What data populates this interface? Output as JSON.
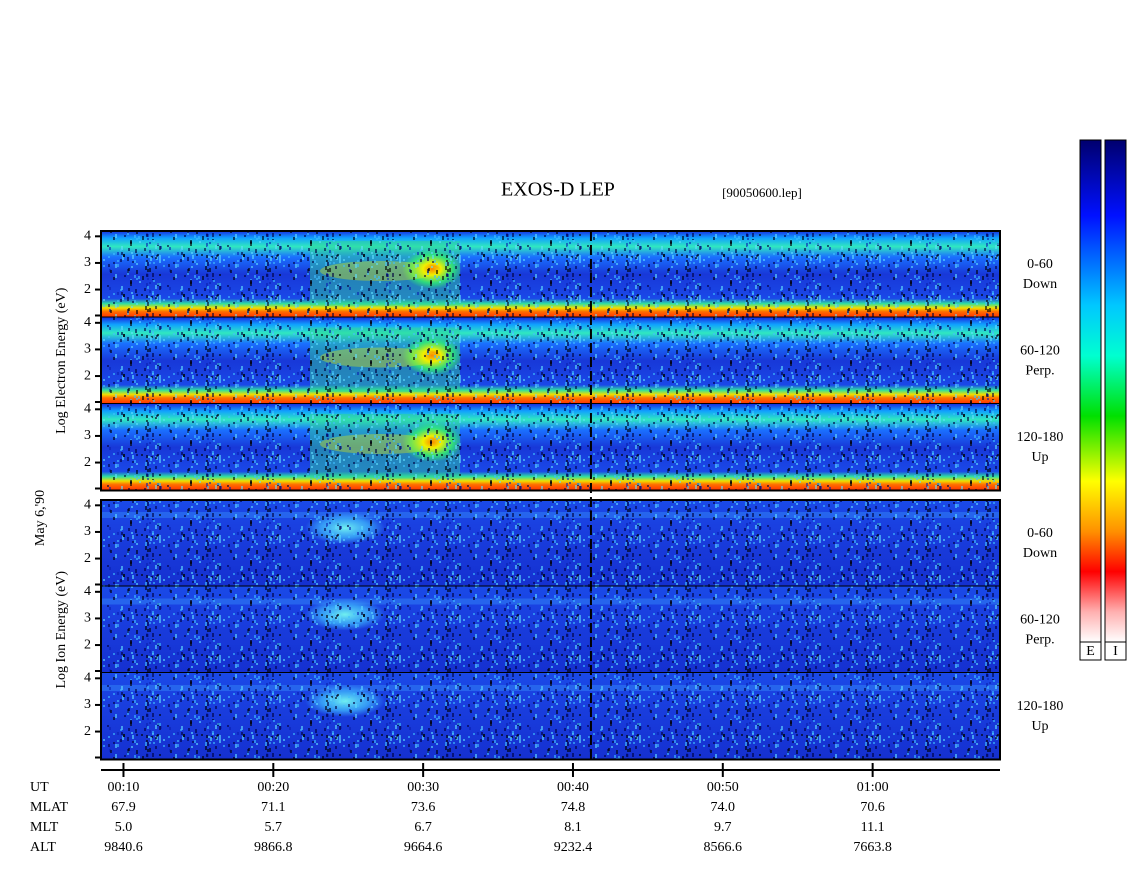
{
  "chart_data": {
    "type": "spectrogram",
    "title": "EXOS-D LEP",
    "subtitle": "[90050600.lep]",
    "date_label": "May 6,'90",
    "xlabel": "UT",
    "xlim": [
      8.5,
      68.5
    ],
    "xticks": [
      {
        "value": 10,
        "label": "00:10"
      },
      {
        "value": 20,
        "label": "00:20"
      },
      {
        "value": 30,
        "label": "00:30"
      },
      {
        "value": 40,
        "label": "00:40"
      },
      {
        "value": 50,
        "label": "00:50"
      },
      {
        "value": 60,
        "label": "01:00"
      }
    ],
    "marker_x": 41.2,
    "ylim": [
      0.95,
      4.2
    ],
    "yticks": [
      2,
      3,
      4
    ],
    "groups": [
      {
        "ylabel": "Log Electron Energy (eV)",
        "panels": [
          {
            "label": "0-60",
            "sublabel": "Down"
          },
          {
            "label": "60-120",
            "sublabel": "Perp."
          },
          {
            "label": "120-180",
            "sublabel": "Up"
          }
        ]
      },
      {
        "ylabel": "Log Ion Energy (eV)",
        "panels": [
          {
            "label": "0-60",
            "sublabel": "Down"
          },
          {
            "label": "60-120",
            "sublabel": "Perp."
          },
          {
            "label": "120-180",
            "sublabel": "Up"
          }
        ]
      }
    ],
    "ephemeris": [
      {
        "name": "MLAT",
        "values": [
          "67.9",
          "71.1",
          "73.6",
          "74.8",
          "74.0",
          "70.6"
        ]
      },
      {
        "name": "MLT",
        "values": [
          "5.0",
          "5.7",
          "6.7",
          "8.1",
          "9.7",
          "11.1"
        ]
      },
      {
        "name": "ALT",
        "values": [
          "9840.6",
          "9866.8",
          "9664.6",
          "9232.4",
          "8566.6",
          "7663.8"
        ]
      }
    ],
    "colorbars": [
      {
        "label": "E"
      },
      {
        "label": "I"
      }
    ]
  }
}
